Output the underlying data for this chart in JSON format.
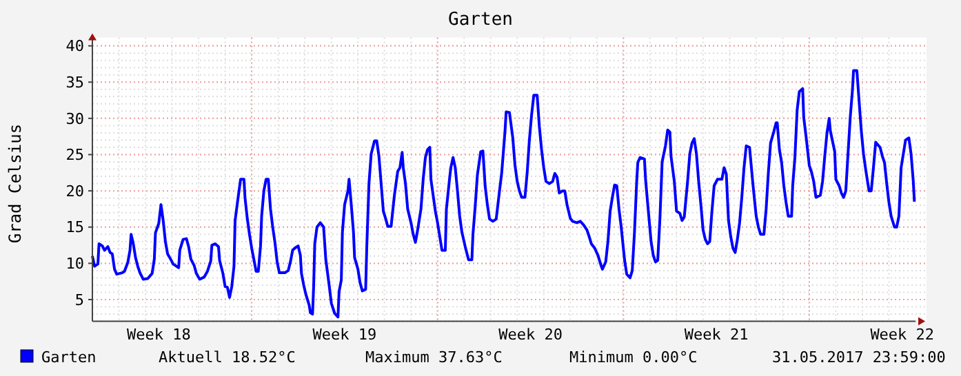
{
  "chart_data": {
    "type": "line",
    "title": "Garten",
    "ylabel": "Grad Celsius",
    "xlim": [
      "2017-05-01T00:00",
      "2017-06-01T00:00"
    ],
    "xticks": [
      {
        "value": "2017-05-03T12:00",
        "label": "Week 18"
      },
      {
        "value": "2017-05-10T12:00",
        "label": "Week 19"
      },
      {
        "value": "2017-05-17T12:00",
        "label": "Week 20"
      },
      {
        "value": "2017-05-24T12:00",
        "label": "Week 21"
      },
      {
        "value": "2017-05-31T12:00",
        "label": "Week 22"
      }
    ],
    "ylim": [
      2,
      40
    ],
    "yticks": [
      5,
      10,
      15,
      20,
      25,
      30,
      35,
      40
    ],
    "grid": true,
    "legend": "bottom",
    "annotations": [
      "Aktuell 18.52°C",
      "Maximum 37.63°C",
      "Minimum 0.00°C",
      "31.05.2017 23:59:00"
    ],
    "series": [
      {
        "name": "Garten",
        "color": "#0000ff",
        "x": [
          "2017-05-01T00:00",
          "2017-05-01T02:00",
          "2017-05-01T05:00",
          "2017-05-01T06:00",
          "2017-05-01T09:00",
          "2017-05-01T11:00",
          "2017-05-01T14:00",
          "2017-05-01T16:00",
          "2017-05-01T18:00",
          "2017-05-01T20:00",
          "2017-05-01T22:00",
          "2017-05-02T03:00",
          "2017-05-02T05:00",
          "2017-05-02T08:00",
          "2017-05-02T10:00",
          "2017-05-02T11:00",
          "2017-05-02T13:00",
          "2017-05-02T15:00",
          "2017-05-02T17:00",
          "2017-05-02T19:00",
          "2017-05-02T22:00",
          "2017-05-03T02:00",
          "2017-05-03T06:00",
          "2017-05-03T08:00",
          "2017-05-03T09:00",
          "2017-05-03T12:00",
          "2017-05-03T14:00",
          "2017-05-03T16:00",
          "2017-05-03T18:00",
          "2017-05-03T20:00",
          "2017-05-03T23:00",
          "2017-05-04T01:00",
          "2017-05-04T06:00",
          "2017-05-04T07:00",
          "2017-05-04T10:00",
          "2017-05-04T13:00",
          "2017-05-04T15:00",
          "2017-05-04T17:00",
          "2017-05-04T20:00",
          "2017-05-04T22:00",
          "2017-05-05T01:00",
          "2017-05-05T05:00",
          "2017-05-05T08:00",
          "2017-05-05T11:00",
          "2017-05-05T12:00",
          "2017-05-05T15:00",
          "2017-05-05T18:00",
          "2017-05-05T19:00",
          "2017-05-05T22:00",
          "2017-05-06T00:00",
          "2017-05-06T02:00",
          "2017-05-06T04:00",
          "2017-05-06T06:00",
          "2017-05-06T08:00",
          "2017-05-06T09:00",
          "2017-05-06T12:00",
          "2017-05-06T14:00",
          "2017-05-06T17:00",
          "2017-05-06T18:00",
          "2017-05-06T20:00",
          "2017-05-06T22:00",
          "2017-05-07T00:00",
          "2017-05-07T02:00",
          "2017-05-07T04:00",
          "2017-05-07T06:00",
          "2017-05-07T08:00",
          "2017-05-07T09:00",
          "2017-05-07T11:00",
          "2017-05-07T13:00",
          "2017-05-07T15:00",
          "2017-05-07T17:00",
          "2017-05-07T19:00",
          "2017-05-07T21:00",
          "2017-05-07T23:00",
          "2017-05-08T01:00",
          "2017-05-08T06:00",
          "2017-05-08T09:00",
          "2017-05-08T11:00",
          "2017-05-08T13:00",
          "2017-05-08T15:00",
          "2017-05-08T18:00",
          "2017-05-08T20:00",
          "2017-05-08T21:00",
          "2017-05-08T23:00",
          "2017-05-09T01:00",
          "2017-05-09T04:00",
          "2017-05-09T05:00",
          "2017-05-09T07:00",
          "2017-05-09T08:00",
          "2017-05-09T09:00",
          "2017-05-09T11:00",
          "2017-05-09T14:00",
          "2017-05-09T17:00",
          "2017-05-09T19:00",
          "2017-05-09T22:00",
          "2017-05-10T00:00",
          "2017-05-10T03:00",
          "2017-05-10T06:00",
          "2017-05-10T07:00",
          "2017-05-10T09:00",
          "2017-05-10T10:00",
          "2017-05-10T12:00",
          "2017-05-10T15:00",
          "2017-05-10T16:00",
          "2017-05-10T18:00",
          "2017-05-10T20:00",
          "2017-05-10T21:00",
          "2017-05-11T00:00",
          "2017-05-11T02:00",
          "2017-05-11T04:00",
          "2017-05-11T07:00",
          "2017-05-11T08:00",
          "2017-05-11T10:00",
          "2017-05-11T12:00",
          "2017-05-11T15:00",
          "2017-05-11T17:00",
          "2017-05-11T19:00",
          "2017-05-11T21:00",
          "2017-05-11T23:00",
          "2017-05-12T01:00",
          "2017-05-12T03:00",
          "2017-05-12T06:00",
          "2017-05-12T09:00",
          "2017-05-12T12:00",
          "2017-05-12T14:00",
          "2017-05-12T16:00",
          "2017-05-12T17:00",
          "2017-05-12T19:00",
          "2017-05-12T21:00",
          "2017-05-13T00:00",
          "2017-05-13T02:00",
          "2017-05-13T04:00",
          "2017-05-13T06:00",
          "2017-05-13T09:00",
          "2017-05-13T11:00",
          "2017-05-13T13:00",
          "2017-05-13T15:00",
          "2017-05-13T17:00",
          "2017-05-13T18:00",
          "2017-05-13T20:00",
          "2017-05-13T22:00",
          "2017-05-14T00:00",
          "2017-05-14T02:00",
          "2017-05-14T04:00",
          "2017-05-14T07:00",
          "2017-05-14T08:00",
          "2017-05-14T11:00",
          "2017-05-14T12:00",
          "2017-05-14T14:00",
          "2017-05-14T16:00",
          "2017-05-14T18:00",
          "2017-05-14T20:00",
          "2017-05-14T22:00",
          "2017-05-15T01:00",
          "2017-05-15T04:00",
          "2017-05-15T07:00",
          "2017-05-15T08:00",
          "2017-05-15T10:00",
          "2017-05-15T12:00",
          "2017-05-15T15:00",
          "2017-05-15T17:00",
          "2017-05-15T19:00",
          "2017-05-15T21:00",
          "2017-05-15T23:00",
          "2017-05-16T02:00",
          "2017-05-16T05:00",
          "2017-05-16T08:00",
          "2017-05-16T10:00",
          "2017-05-16T13:00",
          "2017-05-16T14:00",
          "2017-05-16T17:00",
          "2017-05-16T20:00",
          "2017-05-16T22:00",
          "2017-05-17T00:00",
          "2017-05-17T02:00",
          "2017-05-17T04:00",
          "2017-05-17T07:00",
          "2017-05-17T09:00",
          "2017-05-17T11:00",
          "2017-05-17T13:00",
          "2017-05-17T15:00",
          "2017-05-17T18:00",
          "2017-05-17T20:00",
          "2017-05-17T22:00",
          "2017-05-18T00:00",
          "2017-05-18T02:00",
          "2017-05-18T05:00",
          "2017-05-18T08:00",
          "2017-05-18T10:00",
          "2017-05-18T12:00",
          "2017-05-18T14:00",
          "2017-05-18T17:00",
          "2017-05-18T19:00",
          "2017-05-18T21:00",
          "2017-05-19T00:00",
          "2017-05-19T02:00",
          "2017-05-19T06:00",
          "2017-05-19T09:00",
          "2017-05-19T12:00",
          "2017-05-19T15:00",
          "2017-05-19T17:00",
          "2017-05-19T19:00",
          "2017-05-19T22:00",
          "2017-05-20T01:00",
          "2017-05-20T04:00",
          "2017-05-20T05:00",
          "2017-05-20T08:00",
          "2017-05-20T10:00",
          "2017-05-20T12:00",
          "2017-05-20T14:00",
          "2017-05-20T16:00",
          "2017-05-20T18:00",
          "2017-05-20T20:00",
          "2017-05-20T22:00",
          "2017-05-21T01:00",
          "2017-05-21T03:00",
          "2017-05-21T06:00",
          "2017-05-21T08:00",
          "2017-05-21T10:00",
          "2017-05-21T12:00",
          "2017-05-21T13:00",
          "2017-05-21T15:00",
          "2017-05-21T19:00",
          "2017-05-21T20:00",
          "2017-05-21T22:00",
          "2017-05-22T01:00",
          "2017-05-22T03:00",
          "2017-05-22T05:00",
          "2017-05-22T07:00",
          "2017-05-22T09:00",
          "2017-05-22T11:00",
          "2017-05-22T14:00",
          "2017-05-22T16:00",
          "2017-05-22T18:00",
          "2017-05-22T19:00",
          "2017-05-22T22:00",
          "2017-05-23T00:00",
          "2017-05-23T03:00",
          "2017-05-23T05:00",
          "2017-05-23T07:00",
          "2017-05-23T10:00",
          "2017-05-23T12:00",
          "2017-05-23T14:00",
          "2017-05-23T16:00",
          "2017-05-23T18:00",
          "2017-05-23T20:00",
          "2017-05-23T22:00",
          "2017-05-24T00:00",
          "2017-05-24T02:00",
          "2017-05-24T04:00",
          "2017-05-24T06:00",
          "2017-05-24T08:00",
          "2017-05-24T10:00",
          "2017-05-24T13:00",
          "2017-05-24T17:00",
          "2017-05-24T19:00",
          "2017-05-24T21:00",
          "2017-05-24T23:00",
          "2017-05-25T01:00",
          "2017-05-25T03:00",
          "2017-05-25T05:00",
          "2017-05-25T07:00",
          "2017-05-25T09:00",
          "2017-05-25T11:00",
          "2017-05-25T13:00",
          "2017-05-25T15:00",
          "2017-05-25T18:00",
          "2017-05-25T21:00",
          "2017-05-26T00:00",
          "2017-05-26T02:00",
          "2017-05-26T04:00",
          "2017-05-26T07:00",
          "2017-05-26T09:00",
          "2017-05-26T11:00",
          "2017-05-26T13:00",
          "2017-05-26T16:00",
          "2017-05-26T18:00",
          "2017-05-26T19:00",
          "2017-05-26T21:00",
          "2017-05-26T23:00",
          "2017-05-27T01:00",
          "2017-05-27T03:00",
          "2017-05-27T05:00",
          "2017-05-27T08:00",
          "2017-05-27T09:00",
          "2017-05-27T11:00",
          "2017-05-27T13:00",
          "2017-05-27T15:00",
          "2017-05-27T18:00",
          "2017-05-27T19:00",
          "2017-05-27T21:00",
          "2017-05-28T00:00",
          "2017-05-28T02:00",
          "2017-05-28T04:00",
          "2017-05-28T06:00",
          "2017-05-28T10:00",
          "2017-05-28T12:00",
          "2017-05-28T14:00",
          "2017-05-28T16:00",
          "2017-05-28T18:00",
          "2017-05-28T19:00",
          "2017-05-28T23:00",
          "2017-05-29T00:00",
          "2017-05-29T03:00",
          "2017-05-29T05:00",
          "2017-05-29T07:00",
          "2017-05-29T09:00",
          "2017-05-29T11:00",
          "2017-05-29T13:00",
          "2017-05-29T15:00",
          "2017-05-29T16:00",
          "2017-05-29T19:00",
          "2017-05-29T21:00",
          "2017-05-29T23:00",
          "2017-05-30T01:00",
          "2017-05-30T03:00",
          "2017-05-30T06:00",
          "2017-05-30T08:00",
          "2017-05-30T10:00",
          "2017-05-30T12:00",
          "2017-05-30T16:00",
          "2017-05-30T18:00",
          "2017-05-30T20:00",
          "2017-05-30T22:00",
          "2017-05-31T00:00",
          "2017-05-31T02:00",
          "2017-05-31T05:00",
          "2017-05-31T07:00",
          "2017-05-31T09:00",
          "2017-05-31T11:00",
          "2017-05-31T15:00",
          "2017-05-31T18:00",
          "2017-05-31T20:00",
          "2017-05-31T22:00",
          "2017-05-31T23:00"
        ],
        "values": [
          11,
          9.6,
          9.9,
          12.7,
          12.4,
          11.8,
          12.3,
          11.5,
          11.3,
          9.2,
          8.5,
          8.7,
          8.9,
          10.1,
          11.8,
          14,
          12.7,
          10.8,
          9.6,
          8.7,
          7.8,
          7.9,
          8.6,
          10.6,
          14.2,
          15.5,
          18.1,
          15.9,
          13,
          11.3,
          10.5,
          9.9,
          9.4,
          11.8,
          13.3,
          13.4,
          12.3,
          10.6,
          9.7,
          8.6,
          7.8,
          8.1,
          8.9,
          10.3,
          12.5,
          12.7,
          12.3,
          10.4,
          8.6,
          6.8,
          6.7,
          5.3,
          6.8,
          9.6,
          15.9,
          19.4,
          21.6,
          21.6,
          19,
          16.2,
          14,
          12.1,
          10.5,
          8.9,
          8.9,
          12.4,
          16.5,
          20,
          21.6,
          21.6,
          17.5,
          15,
          12.9,
          10.2,
          8.7,
          8.7,
          9,
          10.2,
          11.8,
          12.1,
          12.4,
          11.1,
          8.6,
          7,
          5.7,
          4.2,
          3.2,
          3,
          6.8,
          12.7,
          15,
          15.6,
          15,
          10.5,
          7,
          4.5,
          3.1,
          2.6,
          6.1,
          7.7,
          14.3,
          18.1,
          20,
          21.6,
          18.1,
          14.3,
          10.8,
          9.2,
          7.3,
          6.2,
          6.4,
          12.1,
          21,
          25.1,
          26.9,
          26.9,
          24.8,
          21,
          17.2,
          16.2,
          15.1,
          15.1,
          19.4,
          22.7,
          23.2,
          25.3,
          23.2,
          21,
          17.5,
          15.6,
          14,
          12.9,
          14.6,
          17.5,
          21.6,
          24.6,
          25.7,
          26,
          21.6,
          19.4,
          17.2,
          15.6,
          13.7,
          11.8,
          11.8,
          17.5,
          21.9,
          23.2,
          24.6,
          23.2,
          20,
          16.5,
          14.3,
          12.3,
          10.5,
          10.5,
          14,
          17.8,
          22.2,
          25.4,
          25.5,
          20.7,
          18.1,
          16.1,
          15.8,
          16.1,
          20,
          22.5,
          28.3,
          30.9,
          30.8,
          27.3,
          23.5,
          21.3,
          20,
          19.1,
          19.1,
          22.5,
          27,
          30.5,
          33.2,
          33.2,
          28.9,
          25.7,
          23.2,
          21.3,
          21,
          21.3,
          22.4,
          21.9,
          19.7,
          20,
          20,
          18.1,
          16.2,
          15.8,
          15.6,
          15.8,
          15.3,
          14.6,
          13.7,
          12.7,
          12.1,
          11.1,
          9.6,
          9.2,
          10.2,
          13,
          17.2,
          19.1,
          20.8,
          20.7,
          17.5,
          15,
          10.5,
          8.5,
          8,
          9,
          14.3,
          21.3,
          23.9,
          24.6,
          24.4,
          21.6,
          18.1,
          13,
          11.1,
          10.2,
          10.4,
          16.2,
          24,
          26.2,
          28.4,
          28.1,
          24.8,
          21.3,
          17.2,
          16.9,
          15.9,
          16.4,
          21.3,
          25.1,
          26.6,
          27.2,
          25.1,
          21.3,
          18.1,
          14.6,
          13.3,
          12.7,
          13,
          17.2,
          20.7,
          21.6,
          21.6,
          23.2,
          22.3,
          15.9,
          13.7,
          12.1,
          11.5,
          13.3,
          15.6,
          19.1,
          23.2,
          26.2,
          26,
          21,
          16.5,
          15,
          14,
          14,
          17.5,
          22.5,
          26.6,
          28.2,
          29.4,
          29.4,
          25.7,
          23.9,
          20.7,
          18.4,
          16.5,
          16.5,
          20.7,
          24.6,
          31.1,
          33.7,
          34.1,
          30.1,
          27.6,
          23.5,
          22.6,
          21.3,
          19.1,
          19.4,
          21.3,
          24.8,
          28,
          30,
          28.3,
          25.4,
          21.6,
          20.7,
          19.7,
          19.1,
          20,
          25.1,
          30.1,
          33.9,
          36.6,
          36.6,
          32.4,
          28.3,
          25.1,
          22.9,
          20,
          20,
          23.2,
          26.7,
          26,
          24.8,
          23.9,
          21,
          18.4,
          16.5,
          15,
          15,
          16.5,
          23.2,
          27,
          27.3,
          25.1,
          21.3,
          18.5
        ]
      }
    ]
  }
}
